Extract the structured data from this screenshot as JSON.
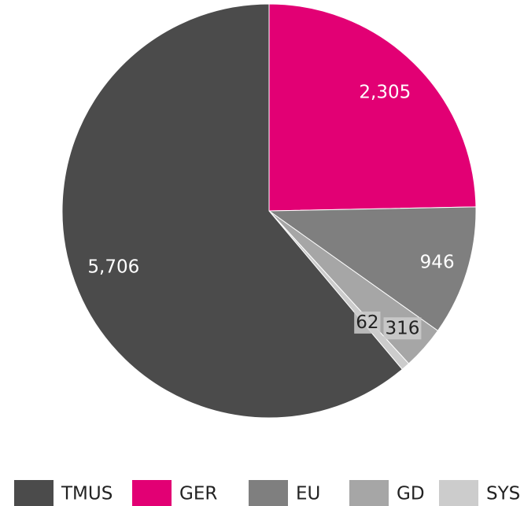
{
  "chart_data": {
    "type": "pie",
    "categories": [
      "GER",
      "EU",
      "GD",
      "SYS",
      "TMUS"
    ],
    "values": [
      2305,
      946,
      316,
      62,
      5706
    ],
    "value_labels": [
      "2,305",
      "946",
      "316",
      "62",
      "5,706"
    ],
    "colors": [
      "#e20074",
      "#7f7f7f",
      "#a6a6a6",
      "#cccccc",
      "#4b4b4b"
    ],
    "legend_order": [
      "TMUS",
      "GER",
      "EU",
      "GD",
      "SYS"
    ],
    "legend": "bottom"
  }
}
